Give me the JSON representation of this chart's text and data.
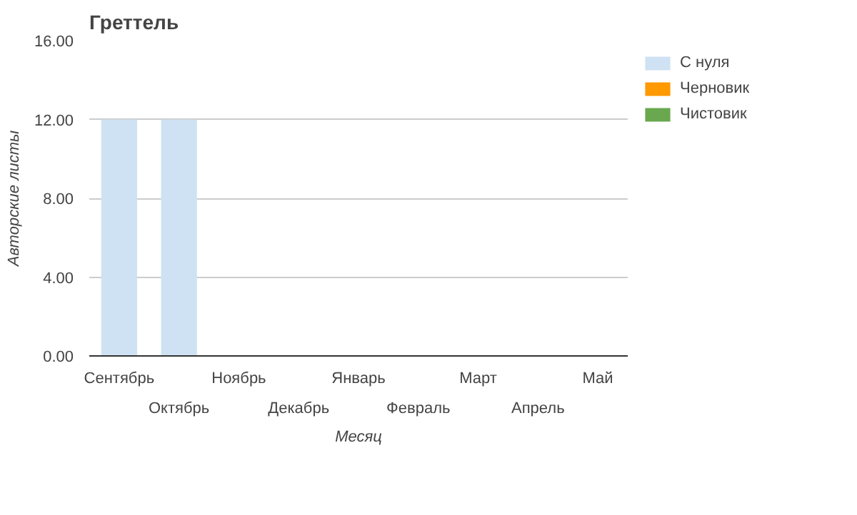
{
  "chart_data": {
    "type": "bar",
    "title": "Греттель",
    "xlabel": "Месяц",
    "ylabel": "Авторские листы",
    "categories": [
      "Сентябрь",
      "Октябрь",
      "Ноябрь",
      "Декабрь",
      "Январь",
      "Февраль",
      "Март",
      "Апрель",
      "Май"
    ],
    "series": [
      {
        "name": "С нуля",
        "color": "#cfe2f3",
        "values": [
          12,
          12,
          0,
          0,
          0,
          0,
          0,
          0,
          0
        ]
      },
      {
        "name": "Черновик",
        "color": "#ff9900",
        "values": [
          0,
          0,
          0,
          0,
          0,
          0,
          0,
          0,
          0
        ]
      },
      {
        "name": "Чистовик",
        "color": "#6aa84f",
        "values": [
          0,
          0,
          0,
          0,
          0,
          0,
          0,
          0,
          0
        ]
      }
    ],
    "ylim": [
      0,
      16
    ],
    "yticks": [
      {
        "value": 0,
        "label": "0.00"
      },
      {
        "value": 4,
        "label": "4.00"
      },
      {
        "value": 8,
        "label": "8.00"
      },
      {
        "value": 12,
        "label": "12.00"
      },
      {
        "value": 16,
        "label": "16.00"
      }
    ],
    "grid": "y",
    "legend": "top right"
  }
}
